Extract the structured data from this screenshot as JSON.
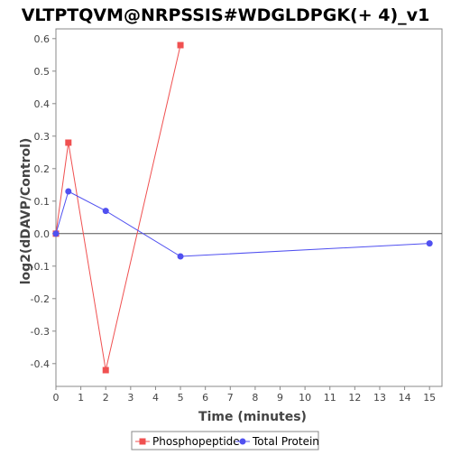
{
  "chart_data": {
    "type": "line",
    "title": "VLTPTQVM@NRPSSIS#WDGLDPGK(+ 4)_v1",
    "xlabel": "Time (minutes)",
    "ylabel": "log2(dDAVP/Control)",
    "xlim": [
      0,
      15.5
    ],
    "ylim": [
      -0.47,
      0.63
    ],
    "x_ticks": [
      0,
      1,
      2,
      3,
      4,
      5,
      6,
      7,
      8,
      9,
      10,
      11,
      12,
      13,
      14,
      15
    ],
    "y_ticks": [
      -0.4,
      -0.3,
      -0.2,
      -0.1,
      0.0,
      0.1,
      0.2,
      0.3,
      0.4,
      0.5,
      0.6
    ],
    "x_tick_labels": [
      "0",
      "1",
      "2",
      "3",
      "4",
      "5",
      "6",
      "7",
      "8",
      "9",
      "10",
      "11",
      "12",
      "13",
      "14",
      "15"
    ],
    "y_tick_labels": [
      "-0.4",
      "-0.3",
      "-0.2",
      "-0.1",
      "0.0",
      "0.1",
      "0.2",
      "0.3",
      "0.4",
      "0.5",
      "0.6"
    ],
    "grid": false,
    "legend_position": "bottom",
    "series": [
      {
        "name": "Phosphopeptide",
        "color": "#f05050",
        "marker": "square",
        "x": [
          0,
          0.5,
          2,
          5
        ],
        "y": [
          0.0,
          0.28,
          -0.42,
          0.58
        ]
      },
      {
        "name": "Total Protein",
        "color": "#5050f0",
        "marker": "circle",
        "x": [
          0,
          0.5,
          2,
          5,
          15
        ],
        "y": [
          0.0,
          0.13,
          0.07,
          -0.07,
          -0.03
        ]
      }
    ]
  }
}
